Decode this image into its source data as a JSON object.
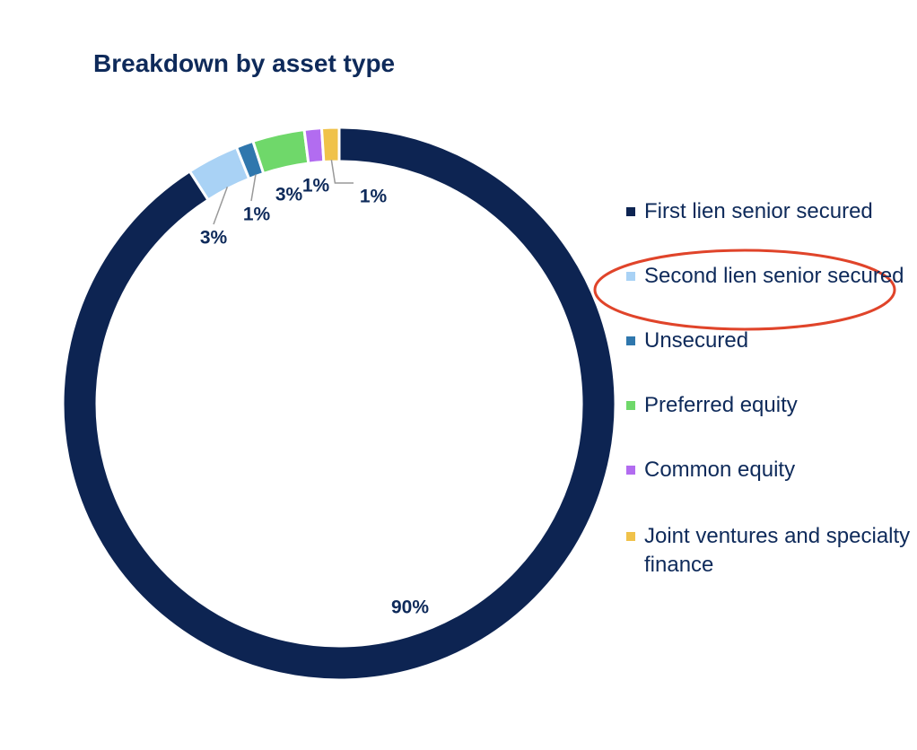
{
  "chart_data": {
    "type": "pie",
    "title": "Breakdown by asset type",
    "categories": [
      "First lien senior secured",
      "Second lien senior secured",
      "Unsecured",
      "Preferred equity",
      "Common equity",
      "Joint ventures and specialty finance"
    ],
    "values": [
      90,
      3,
      1,
      3,
      1,
      1
    ],
    "value_labels": [
      "90%",
      "3%",
      "1%",
      "3%",
      "1%",
      "1%"
    ],
    "colors": [
      "#0d2452",
      "#a9d2f5",
      "#2f77ad",
      "#6fd86a",
      "#b26cf0",
      "#f0c24a"
    ],
    "legend": "right"
  }
}
